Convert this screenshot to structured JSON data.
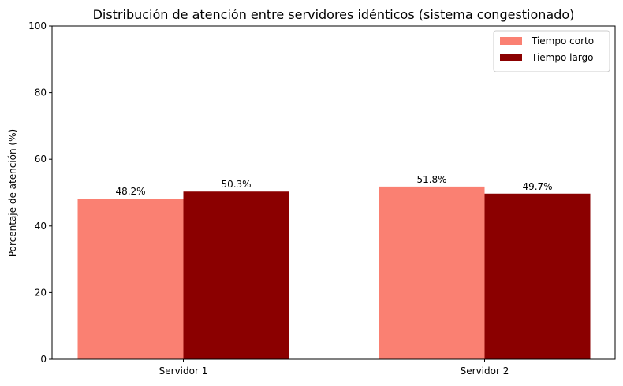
{
  "chart_data": {
    "type": "bar",
    "title": "Distribución de atención entre servidores idénticos (sistema congestionado)",
    "xlabel": "",
    "ylabel": "Porcentaje de atención (%)",
    "ylim": [
      0,
      100
    ],
    "yticks": [
      0,
      20,
      40,
      60,
      80,
      100
    ],
    "categories": [
      "Servidor 1",
      "Servidor 2"
    ],
    "series": [
      {
        "name": "Tiempo corto",
        "values": [
          48.2,
          51.8
        ],
        "labels": [
          "48.2%",
          "51.8%"
        ],
        "color": "#fa8072"
      },
      {
        "name": "Tiempo largo",
        "values": [
          50.3,
          49.7
        ],
        "labels": [
          "50.3%",
          "49.7%"
        ],
        "color": "#8b0000"
      }
    ],
    "legend_position": "top-right",
    "grid": false
  }
}
